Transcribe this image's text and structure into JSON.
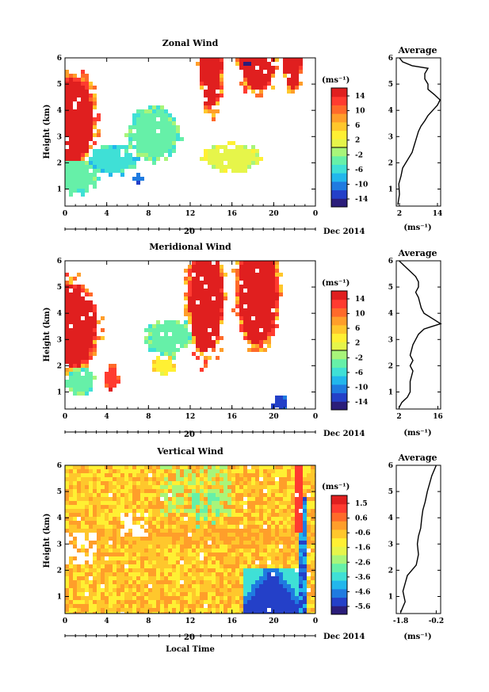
{
  "figure": {
    "date_label": "Dec 2014",
    "day_label": "20",
    "time_label": "Local Time",
    "height_label": "Height (km)",
    "unit_label": "(ms⁻¹)",
    "average_title": "Average"
  },
  "chart_data": [
    {
      "type": "heatmap",
      "title": "Zonal Wind",
      "xlabel": "",
      "ylabel": "Height (km)",
      "x_ticks": [
        "0",
        "4",
        "8",
        "12",
        "16",
        "20",
        "0"
      ],
      "xlim": [
        0,
        24
      ],
      "y_ticks": [
        "1",
        "2",
        "3",
        "4",
        "5",
        "6"
      ],
      "ylim": [
        0.35,
        6
      ],
      "colorbar": {
        "label": "(ms⁻¹)",
        "ticks": [
          "14",
          "10",
          "6",
          "2",
          "-2",
          "-6",
          "-10",
          "-14"
        ],
        "range": [
          -16,
          16
        ],
        "zero_line": true
      },
      "average_profile": {
        "title": "Average",
        "x_ticks": [
          "2",
          "14"
        ],
        "xlim": [
          1,
          15
        ],
        "xlabel": "(ms⁻¹)",
        "x": [
          1.5,
          2.0,
          1.8,
          2.5,
          3.0,
          4.5,
          6.0,
          6.5,
          7.0,
          7.5,
          8.0,
          8.8,
          10.0,
          11.0,
          12.5,
          14.0,
          14.8,
          13.0,
          11.0,
          11.0,
          10.0,
          10.0,
          11.0,
          6.0,
          3.0,
          2.0
        ],
        "y": [
          0.4,
          0.8,
          1.2,
          1.5,
          1.8,
          2.1,
          2.4,
          2.6,
          2.8,
          3.0,
          3.2,
          3.4,
          3.6,
          3.8,
          4.0,
          4.2,
          4.4,
          4.6,
          4.8,
          5.0,
          5.2,
          5.4,
          5.6,
          5.7,
          5.85,
          6.0
        ]
      }
    },
    {
      "type": "heatmap",
      "title": "Meridional Wind",
      "xlabel": "",
      "ylabel": "Height (km)",
      "x_ticks": [
        "0",
        "4",
        "8",
        "12",
        "16",
        "20",
        "0"
      ],
      "xlim": [
        0,
        24
      ],
      "y_ticks": [
        "1",
        "2",
        "3",
        "4",
        "5",
        "6"
      ],
      "ylim": [
        0.35,
        6
      ],
      "colorbar": {
        "label": "(ms⁻¹)",
        "ticks": [
          "14",
          "10",
          "6",
          "2",
          "-2",
          "-6",
          "-10",
          "-14"
        ],
        "range": [
          -16,
          16
        ],
        "zero_line": true
      },
      "average_profile": {
        "title": "Average",
        "x_ticks": [
          "2",
          "16"
        ],
        "xlim": [
          1,
          17
        ],
        "xlabel": "(ms⁻¹)",
        "x": [
          2.0,
          3.0,
          5.0,
          6.0,
          6.0,
          7.0,
          6.0,
          7.0,
          6.0,
          7.0,
          8.0,
          9.0,
          11.0,
          14.0,
          17.0,
          14.0,
          11.0,
          10.0,
          9.0,
          8.0,
          9.0,
          9.0,
          8.0,
          6.0,
          4.0,
          2.0
        ],
        "y": [
          0.4,
          0.6,
          0.8,
          1.0,
          1.4,
          1.8,
          2.0,
          2.2,
          2.4,
          2.8,
          3.0,
          3.2,
          3.4,
          3.5,
          3.6,
          3.8,
          4.0,
          4.2,
          4.6,
          4.8,
          5.0,
          5.2,
          5.4,
          5.6,
          5.8,
          6.0
        ]
      }
    },
    {
      "type": "heatmap",
      "title": "Vertical Wind",
      "xlabel": "Local Time",
      "ylabel": "Height (km)",
      "x_ticks": [
        "0",
        "4",
        "8",
        "12",
        "16",
        "20",
        "0"
      ],
      "xlim": [
        0,
        24
      ],
      "y_ticks": [
        "1",
        "2",
        "3",
        "4",
        "5",
        "6"
      ],
      "ylim": [
        0.35,
        6
      ],
      "colorbar": {
        "label": "(ms⁻¹)",
        "ticks": [
          "1.5",
          "0.6",
          "-0.6",
          "-1.6",
          "-2.6",
          "-3.6",
          "-4.6",
          "-5.6"
        ],
        "range": [
          -6.1,
          2.0
        ],
        "zero_line": false
      },
      "average_profile": {
        "title": "Average",
        "x_ticks": [
          "-1.8",
          "-0.2"
        ],
        "xlim": [
          -2.0,
          0.0
        ],
        "xlabel": "(ms⁻¹)",
        "x": [
          -1.8,
          -1.6,
          -1.7,
          -1.6,
          -1.5,
          -1.3,
          -1.1,
          -1.0,
          -1.05,
          -1.0,
          -0.9,
          -0.85,
          -0.8,
          -0.7,
          -0.6,
          -0.5,
          -0.4,
          -0.3,
          -0.2
        ],
        "y": [
          0.4,
          0.8,
          1.2,
          1.5,
          1.8,
          2.0,
          2.2,
          2.6,
          3.0,
          3.3,
          3.6,
          4.0,
          4.3,
          4.6,
          5.0,
          5.3,
          5.6,
          5.8,
          6.0
        ]
      }
    }
  ]
}
